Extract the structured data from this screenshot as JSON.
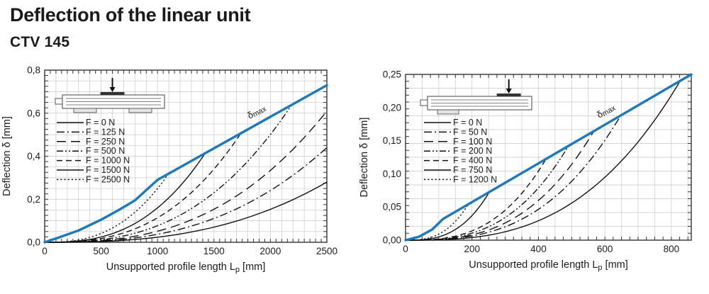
{
  "page": {
    "title": "Deflection of the linear unit",
    "subtitle": "CTV 145"
  },
  "colors": {
    "dmax_line": "#1a79c0",
    "curves": "#111111",
    "grid": "#c9c9c9",
    "frame": "#333333",
    "text": "#1a1a1a"
  },
  "chart_data": [
    {
      "type": "line",
      "load_position": "center",
      "xlabel": {
        "pre": "Unsupported profile length L",
        "sub": "p",
        "post": " [mm]"
      },
      "ylabel": "Deflection δ [mm]",
      "xlim": [
        0,
        2500
      ],
      "ylim": [
        0,
        0.8
      ],
      "x_ticks": [
        {
          "v": 0,
          "label": "0"
        },
        {
          "v": 500,
          "label": "500"
        },
        {
          "v": 1000,
          "label": "1000"
        },
        {
          "v": 1500,
          "label": "1500"
        },
        {
          "v": 2000,
          "label": "2000"
        },
        {
          "v": 2500,
          "label": "2500"
        }
      ],
      "y_ticks": [
        {
          "v": 0,
          "label": "0,0"
        },
        {
          "v": 0.2,
          "label": "0,2"
        },
        {
          "v": 0.4,
          "label": "0,4"
        },
        {
          "v": 0.6,
          "label": "0,6"
        },
        {
          "v": 0.8,
          "label": "0,8"
        }
      ],
      "x_grid_step": 100,
      "x_tick_step": 50,
      "y_grid_count": 16,
      "y_tick_count": 32,
      "dmax": {
        "label": {
          "sym": "δ",
          "sub": "max"
        },
        "points": [
          [
            0,
            0
          ],
          [
            130,
            0.023
          ],
          [
            300,
            0.055
          ],
          [
            500,
            0.105
          ],
          [
            650,
            0.148
          ],
          [
            800,
            0.195
          ],
          [
            1000,
            0.29
          ],
          [
            2500,
            0.73
          ]
        ]
      },
      "series": [
        {
          "label": "F = 0 N",
          "dash": "solid",
          "end": [
            2500,
            0.28
          ],
          "exp": 2.7
        },
        {
          "label": "F = 125 N",
          "dash": "dashdot",
          "end": [
            2500,
            0.44
          ],
          "exp": 2.7
        },
        {
          "label": "F = 250 N",
          "dash": "longdash",
          "end": [
            2500,
            0.61
          ],
          "exp": 2.7
        },
        {
          "label": "F = 500 N",
          "dash": "dashdotdot",
          "end": [
            2190,
            0.64
          ],
          "exp": 2.7
        },
        {
          "label": "F = 1000 N",
          "dash": "dash",
          "end": [
            1730,
            0.5
          ],
          "exp": 2.7
        },
        {
          "label": "F = 1500 N",
          "dash": "solid",
          "end": [
            1430,
            0.42
          ],
          "exp": 2.7
        },
        {
          "label": "F = 2500 N",
          "dash": "dotted",
          "end": [
            1100,
            0.32
          ],
          "exp": 2.6
        }
      ]
    },
    {
      "type": "line",
      "load_position": "end",
      "xlabel": {
        "pre": "Unsupported profile length L",
        "sub": "p",
        "post": " [mm]"
      },
      "ylabel": "Deflection δ [mm]",
      "xlim": [
        0,
        860
      ],
      "ylim": [
        0,
        0.25
      ],
      "x_ticks": [
        {
          "v": 0,
          "label": "0"
        },
        {
          "v": 200,
          "label": "200"
        },
        {
          "v": 400,
          "label": "400"
        },
        {
          "v": 600,
          "label": "600"
        },
        {
          "v": 800,
          "label": "800"
        }
      ],
      "y_ticks": [
        {
          "v": 0,
          "label": "0,00"
        },
        {
          "v": 0.05,
          "label": "0,05"
        },
        {
          "v": 0.1,
          "label": "0,10"
        },
        {
          "v": 0.15,
          "label": "0,15"
        },
        {
          "v": 0.2,
          "label": "0,20"
        },
        {
          "v": 0.25,
          "label": "0,25"
        }
      ],
      "x_grid_step": 50,
      "x_tick_step": 25,
      "y_grid_count": 12,
      "y_tick_count": 24,
      "dmax": {
        "label": {
          "sym": "δ",
          "sub": "max"
        },
        "points": [
          [
            0,
            0
          ],
          [
            40,
            0.005
          ],
          [
            80,
            0.016
          ],
          [
            113,
            0.032
          ],
          [
            860,
            0.25
          ]
        ]
      },
      "series": [
        {
          "label": "F = 0 N",
          "dash": "solid",
          "end": [
            830,
            0.243
          ],
          "exp": 2.9
        },
        {
          "label": "F = 50 N",
          "dash": "dashdot",
          "end": [
            650,
            0.19
          ],
          "exp": 2.9
        },
        {
          "label": "F = 100 N",
          "dash": "longdash",
          "end": [
            565,
            0.163
          ],
          "exp": 2.9
        },
        {
          "label": "F = 200 N",
          "dash": "dashdotdot",
          "end": [
            490,
            0.142
          ],
          "exp": 2.9
        },
        {
          "label": "F = 400 N",
          "dash": "dash",
          "end": [
            420,
            0.12
          ],
          "exp": 2.9
        },
        {
          "label": "F = 750 N",
          "dash": "solid",
          "end": [
            255,
            0.075
          ],
          "exp": 2.9
        },
        {
          "label": "F = 1200 N",
          "dash": "dotted",
          "end": [
            190,
            0.055
          ],
          "exp": 2.8
        }
      ]
    }
  ]
}
